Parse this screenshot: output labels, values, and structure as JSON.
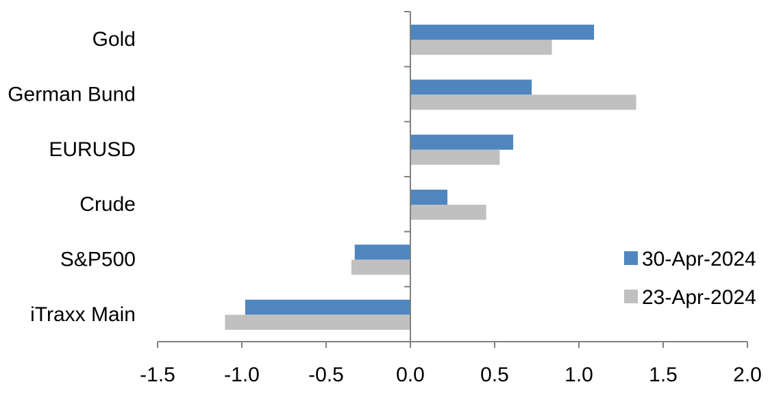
{
  "chart_data": {
    "type": "bar",
    "orientation": "horizontal",
    "categories": [
      "Gold",
      "German Bund",
      "EURUSD",
      "Crude",
      "S&P500",
      "iTraxx Main"
    ],
    "series": [
      {
        "name": "30-Apr-2024",
        "color": "#4F86BE",
        "values": [
          1.09,
          0.72,
          0.61,
          0.22,
          -0.33,
          -0.98
        ]
      },
      {
        "name": "23-Apr-2024",
        "color": "#C0C0C0",
        "values": [
          0.84,
          1.34,
          0.53,
          0.45,
          -0.35,
          -1.1
        ]
      }
    ],
    "xlim": [
      -1.5,
      2.0
    ],
    "xticks": [
      -1.5,
      -1.0,
      -0.5,
      0.0,
      0.5,
      1.0,
      1.5,
      2.0
    ],
    "xtick_labels": [
      "-1.5",
      "-1.0",
      "-0.5",
      "0.0",
      "0.5",
      "1.0",
      "1.5",
      "2.0"
    ],
    "grid": false,
    "legend_position": "bottom-right"
  }
}
